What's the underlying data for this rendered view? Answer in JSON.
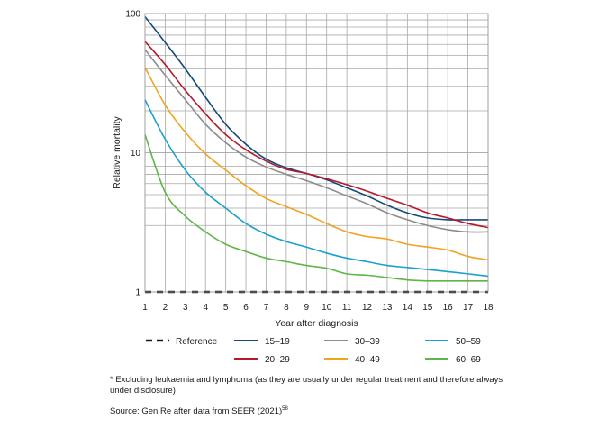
{
  "chart_data": {
    "type": "line",
    "xlabel": "Year after diagnosis",
    "ylabel": "Relative mortality",
    "x": [
      1,
      2,
      3,
      4,
      5,
      6,
      7,
      8,
      9,
      10,
      11,
      12,
      13,
      14,
      15,
      16,
      17,
      18
    ],
    "xlim": [
      1,
      18
    ],
    "ylim": [
      1,
      100
    ],
    "yscale": "log",
    "y_ticks": [
      "1",
      "10",
      "100"
    ],
    "grid": true,
    "legend_position": "bottom",
    "reference": {
      "name": "Reference",
      "value": 1,
      "style": "dashed",
      "color": "#1a1a1a"
    },
    "series": [
      {
        "name": "15–19",
        "color": "#14497a",
        "values": [
          95,
          62,
          40,
          25,
          16,
          11.5,
          9,
          7.8,
          7.1,
          6.4,
          5.6,
          4.9,
          4.2,
          3.7,
          3.4,
          3.3,
          3.3,
          3.3
        ]
      },
      {
        "name": "20–29",
        "color": "#b5182b",
        "values": [
          63,
          43,
          28,
          19,
          13.5,
          10.5,
          8.7,
          7.6,
          7.1,
          6.5,
          5.9,
          5.3,
          4.7,
          4.2,
          3.7,
          3.4,
          3.1,
          2.9
        ]
      },
      {
        "name": "30–39",
        "color": "#8c8c8c",
        "values": [
          55,
          36,
          24,
          16,
          11.8,
          9.3,
          7.9,
          7.0,
          6.3,
          5.6,
          4.9,
          4.3,
          3.7,
          3.3,
          3.0,
          2.8,
          2.7,
          2.7
        ]
      },
      {
        "name": "40–49",
        "color": "#f2a21e",
        "values": [
          41,
          22,
          14,
          9.8,
          7.5,
          5.8,
          4.7,
          4.1,
          3.6,
          3.1,
          2.7,
          2.5,
          2.4,
          2.2,
          2.1,
          2.0,
          1.8,
          1.7
        ]
      },
      {
        "name": "50–59",
        "color": "#1aa0cc",
        "values": [
          24,
          12.5,
          7.5,
          5.2,
          4.0,
          3.1,
          2.6,
          2.3,
          2.1,
          1.9,
          1.75,
          1.65,
          1.55,
          1.5,
          1.45,
          1.4,
          1.35,
          1.3
        ]
      },
      {
        "name": "60–69",
        "color": "#5fb547",
        "values": [
          13.5,
          5.2,
          3.5,
          2.7,
          2.2,
          1.95,
          1.75,
          1.65,
          1.55,
          1.48,
          1.35,
          1.32,
          1.27,
          1.22,
          1.2,
          1.2,
          1.2,
          1.2
        ]
      }
    ]
  },
  "notes": {
    "footnote": "* Excluding leukaemia and lymphoma (as they are usually under regular treatment and therefore always under disclosure)",
    "source": "Source: Gen Re after data from SEER (2021)"
  }
}
